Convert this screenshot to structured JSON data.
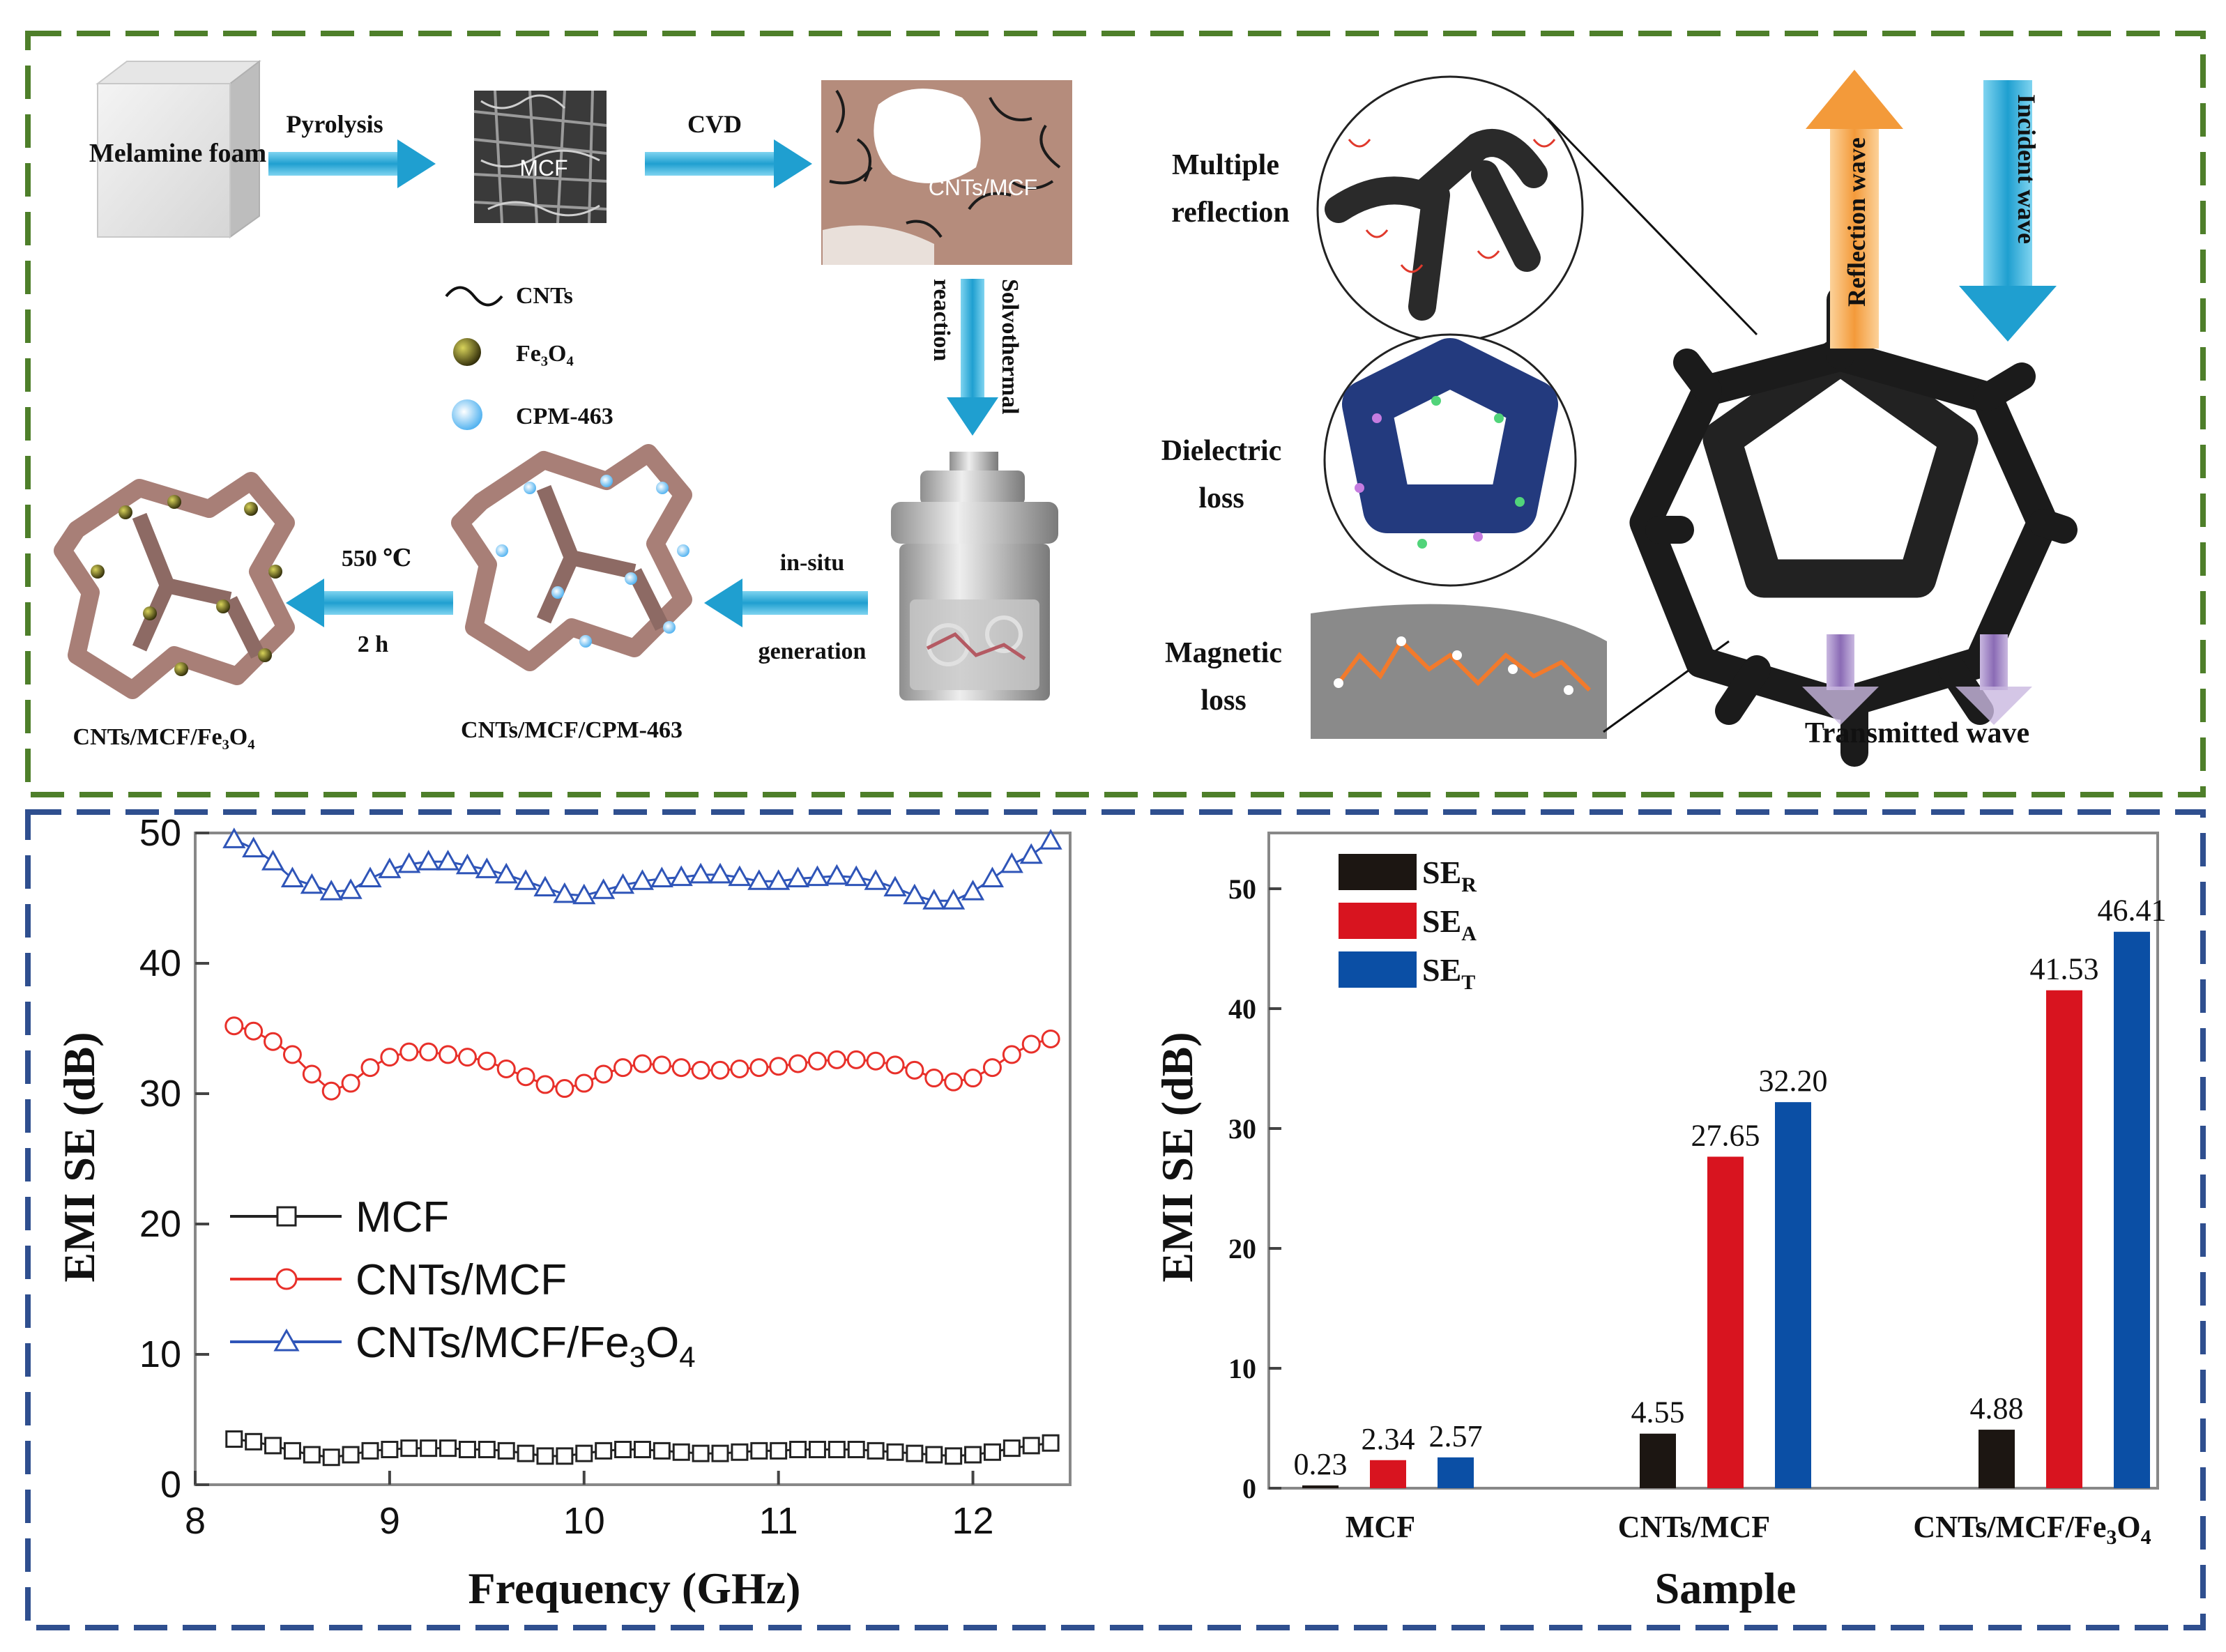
{
  "top_panel": {
    "melamine_label": "Melamine foam",
    "pyrolysis_label": "Pyrolysis",
    "mcf_label": "MCF",
    "cvd_label": "CVD",
    "cnts_mcf_label": "CNTs/MCF",
    "solvothermal_label": "Solvothermal",
    "reaction_label": "reaction",
    "legend_cnts": "CNTs",
    "legend_fe3o4": "Fe₃O₄",
    "legend_cpm": "CPM-463",
    "insitu_label": "in-situ",
    "generation_label": "generation",
    "temp_label": "550 ℃",
    "time_label": "2 h",
    "product_cpm_label": "CNTs/MCF/CPM-463",
    "product_fe3o4_label": "CNTs/MCF/Fe₃O₄",
    "multiple_label": "Multiple",
    "reflection_label": "reflection",
    "dielectric_label": "Dielectric",
    "dielectric_loss_label": "loss",
    "magnetic_label": "Magnetic",
    "magnetic_loss_label": "loss",
    "reflection_wave": "Reflection wave",
    "incident_wave": "Incident wave",
    "transmitted_wave": "Transmitted wave",
    "colors": {
      "green_border": "#4e7f2a",
      "blue_border": "#2f4f8f",
      "arrow_blue": "#1f9fd0",
      "orange": "#f4a460"
    }
  },
  "chart_data": [
    {
      "type": "line",
      "xlabel": "Frequency (GHz)",
      "ylabel": "EMI SE (dB)",
      "xlim": [
        8,
        12.5
      ],
      "ylim": [
        0,
        50
      ],
      "xticks": [
        "8",
        "9",
        "10",
        "11",
        "12"
      ],
      "yticks": [
        "0",
        "10",
        "20",
        "30",
        "40",
        "50"
      ],
      "x": [
        8.2,
        8.3,
        8.4,
        8.5,
        8.6,
        8.7,
        8.8,
        8.9,
        9.0,
        9.1,
        9.2,
        9.3,
        9.4,
        9.5,
        9.6,
        9.7,
        9.8,
        9.9,
        10.0,
        10.1,
        10.2,
        10.3,
        10.4,
        10.5,
        10.6,
        10.7,
        10.8,
        10.9,
        11.0,
        11.1,
        11.2,
        11.3,
        11.4,
        11.5,
        11.6,
        11.7,
        11.8,
        11.9,
        12.0,
        12.1,
        12.2,
        12.3,
        12.4
      ],
      "series": [
        {
          "name": "MCF",
          "color": "#222222",
          "marker": "square",
          "values": [
            3.5,
            3.3,
            3.0,
            2.6,
            2.3,
            2.1,
            2.3,
            2.6,
            2.7,
            2.8,
            2.8,
            2.8,
            2.7,
            2.7,
            2.6,
            2.4,
            2.2,
            2.2,
            2.4,
            2.6,
            2.7,
            2.7,
            2.6,
            2.5,
            2.4,
            2.4,
            2.5,
            2.6,
            2.6,
            2.7,
            2.7,
            2.7,
            2.7,
            2.6,
            2.5,
            2.4,
            2.3,
            2.2,
            2.3,
            2.5,
            2.8,
            3.0,
            3.2
          ]
        },
        {
          "name": "CNTs/MCF",
          "color": "#e8302a",
          "marker": "circle",
          "values": [
            35.2,
            34.8,
            34.0,
            33.0,
            31.5,
            30.2,
            30.8,
            32.0,
            32.8,
            33.2,
            33.2,
            33.0,
            32.8,
            32.5,
            31.9,
            31.3,
            30.7,
            30.4,
            30.8,
            31.5,
            32.0,
            32.3,
            32.2,
            32.0,
            31.8,
            31.8,
            31.9,
            32.0,
            32.1,
            32.3,
            32.5,
            32.6,
            32.6,
            32.5,
            32.2,
            31.8,
            31.2,
            30.9,
            31.2,
            32.0,
            33.0,
            33.8,
            34.2
          ]
        },
        {
          "name": "CNTs/MCF/Fe3O4",
          "color": "#2f55b8",
          "marker": "triangle",
          "values": [
            49.5,
            48.8,
            47.8,
            46.5,
            46.0,
            45.5,
            45.6,
            46.5,
            47.2,
            47.6,
            47.8,
            47.8,
            47.5,
            47.2,
            46.8,
            46.3,
            45.8,
            45.3,
            45.2,
            45.6,
            46.0,
            46.3,
            46.5,
            46.6,
            46.8,
            46.8,
            46.6,
            46.3,
            46.3,
            46.5,
            46.6,
            46.7,
            46.6,
            46.3,
            45.8,
            45.2,
            44.8,
            44.8,
            45.5,
            46.5,
            47.6,
            48.3,
            49.4
          ]
        }
      ],
      "legend": [
        "MCF",
        "CNTs/MCF",
        "CNTs/MCF/Fe3O4"
      ]
    },
    {
      "type": "bar",
      "xlabel": "Sample",
      "ylabel": "EMI SE (dB)",
      "ylim": [
        0,
        55
      ],
      "yticks": [
        "0",
        "10",
        "20",
        "30",
        "40",
        "50"
      ],
      "categories": [
        "MCF",
        "CNTs/MCF",
        "CNTs/MCF/Fe3O4"
      ],
      "series": [
        {
          "name": "SE_R",
          "color": "#1c1612",
          "values": [
            0.23,
            4.55,
            4.88
          ]
        },
        {
          "name": "SE_A",
          "color": "#d8141f",
          "values": [
            2.34,
            27.65,
            41.53
          ]
        },
        {
          "name": "SE_T",
          "color": "#0b4fa5",
          "values": [
            2.57,
            32.2,
            46.41
          ]
        }
      ],
      "labels": [
        [
          "0.23",
          "4.55",
          "4.88"
        ],
        [
          "2.34",
          "27.65",
          "41.53"
        ],
        [
          "2.57",
          "32.20",
          "46.41"
        ]
      ],
      "legend": [
        "SE_R",
        "SE_A",
        "SE_T"
      ],
      "legend_sub": [
        "R",
        "A",
        "T"
      ]
    }
  ]
}
